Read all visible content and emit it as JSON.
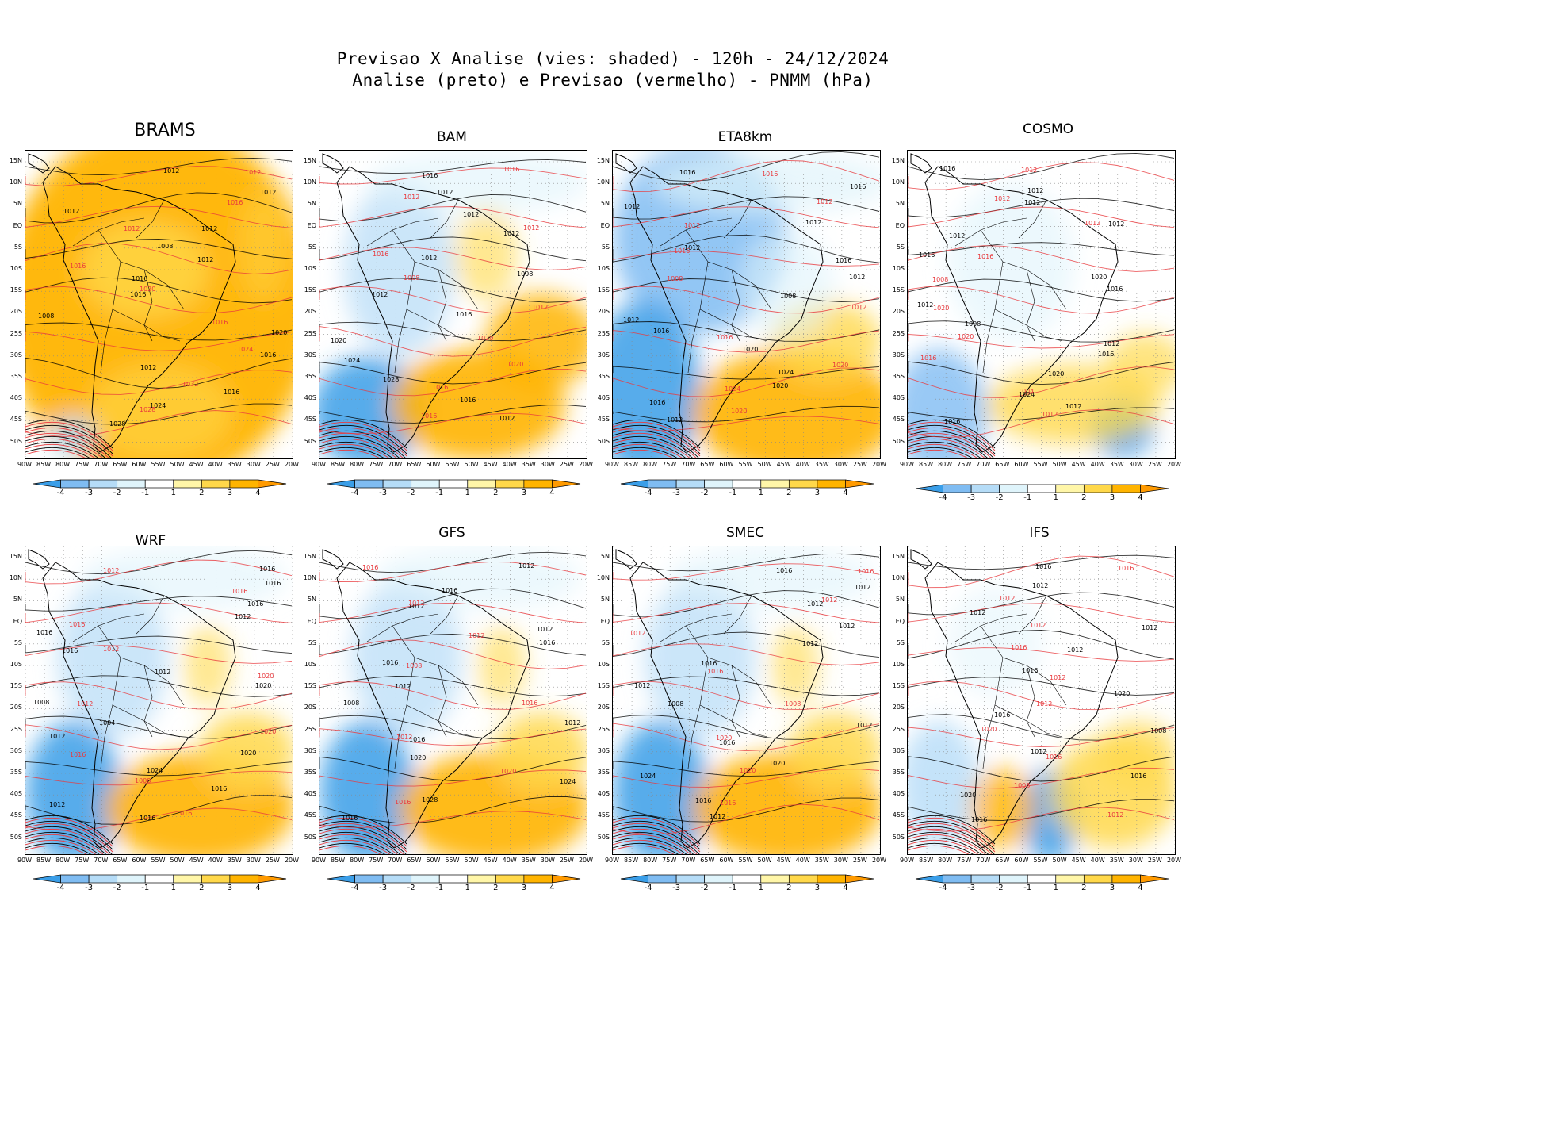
{
  "figure": {
    "title_line1": "Previsao X Analise (vies: shaded) - 120h - 24/12/2024",
    "title_line2": "Analise (preto) e Previsao (vermelho) - PNMM (hPa)"
  },
  "lat_labels": [
    "15N",
    "10N",
    "5N",
    "EQ",
    "5S",
    "10S",
    "15S",
    "20S",
    "25S",
    "30S",
    "35S",
    "40S",
    "45S",
    "50S"
  ],
  "lon_labels": [
    "90W",
    "85W",
    "80W",
    "75W",
    "70W",
    "65W",
    "60W",
    "55W",
    "50W",
    "45W",
    "40W",
    "35W",
    "30W",
    "25W",
    "20W"
  ],
  "colorbar": {
    "labels": [
      "-4",
      "-3",
      "-2",
      "-1",
      "1",
      "2",
      "3",
      "4"
    ],
    "colors": [
      "#3a9ee8",
      "#7fbcf2",
      "#b5dcf7",
      "#dff4fb",
      "#ffffff",
      "#fff6a8",
      "#ffd84a",
      "#ffb400",
      "#ff9a00"
    ]
  },
  "colors": {
    "analysis_contour": "#000000",
    "forecast_contour": "#e8393d",
    "land_outline": "#000000"
  },
  "panels": [
    {
      "name": "BRAMS",
      "bias": "warm-full",
      "labels_black": [
        "1012",
        "1012",
        "1012",
        "1012",
        "1008",
        "1012",
        "1016",
        "1016",
        "1008",
        "1020",
        "1016",
        "1012",
        "1016",
        "1024",
        "1028"
      ],
      "labels_red": [
        "1012",
        "1016",
        "1012",
        "1016",
        "1020",
        "1016",
        "1024",
        "1032",
        "1028"
      ]
    },
    {
      "name": "BAM",
      "bias": "mixed",
      "labels_black": [
        "1016",
        "1012",
        "1012",
        "1012",
        "1012",
        "1008",
        "1012",
        "1016",
        "1020",
        "1024",
        "1028",
        "1016",
        "1012"
      ],
      "labels_red": [
        "1016",
        "1012",
        "1012",
        "1016",
        "1008",
        "1012",
        "1020",
        "1020",
        "1016",
        "1016"
      ]
    },
    {
      "name": "ETA8km",
      "bias": "cold",
      "labels_black": [
        "1016",
        "1016",
        "1012",
        "1012",
        "1012",
        "1016",
        "1012",
        "1008",
        "1012",
        "1016",
        "1020",
        "1024",
        "1020",
        "1016",
        "1012"
      ],
      "labels_red": [
        "1016",
        "1012",
        "1012",
        "1016",
        "1008",
        "1012",
        "1016",
        "1020",
        "1024",
        "1020"
      ]
    },
    {
      "name": "COSMO",
      "bias": "mixed-cold-south",
      "labels_black": [
        "1016",
        "1012",
        "1012",
        "1012",
        "1012",
        "1016",
        "1020",
        "1016",
        "1012",
        "1008",
        "1012",
        "1016",
        "1020",
        "1024",
        "1012",
        "1016"
      ],
      "labels_red": [
        "1012",
        "1012",
        "1012",
        "1016",
        "1008",
        "1020",
        "1020",
        "1016",
        "1004",
        "1012"
      ]
    },
    {
      "name": "WRF",
      "bias": "warm-south",
      "labels_black": [
        "1016",
        "1016",
        "1016",
        "1012",
        "1016",
        "1016",
        "1012",
        "1020",
        "1008",
        "1004",
        "1012",
        "1020",
        "1024",
        "1016",
        "1012",
        "1016"
      ],
      "labels_red": [
        "1012",
        "1016",
        "1016",
        "1012",
        "1020",
        "1012",
        "1020",
        "1016",
        "1008",
        "1016"
      ]
    },
    {
      "name": "GFS",
      "bias": "warm-south",
      "labels_black": [
        "1012",
        "1016",
        "1012",
        "1012",
        "1016",
        "1016",
        "1012",
        "1008",
        "1012",
        "1016",
        "1020",
        "1024",
        "1028",
        "1016"
      ],
      "labels_red": [
        "1016",
        "1012",
        "1012",
        "1008",
        "1016",
        "1012",
        "1020",
        "1016"
      ]
    },
    {
      "name": "SMEC",
      "bias": "warm-south",
      "labels_black": [
        "1016",
        "1012",
        "1012",
        "1012",
        "1012",
        "1016",
        "1012",
        "1008",
        "1012",
        "1016",
        "1020",
        "1024",
        "1016",
        "1012"
      ],
      "labels_red": [
        "1016",
        "1012",
        "1012",
        "1016",
        "1008",
        "1020",
        "1020",
        "1016"
      ]
    },
    {
      "name": "IFS",
      "bias": "mixed-cold-center",
      "labels_black": [
        "1016",
        "1012",
        "1012",
        "1012",
        "1012",
        "1016",
        "1020",
        "1016",
        "1008",
        "1012",
        "1016",
        "1020",
        "1016"
      ],
      "labels_red": [
        "1016",
        "1012",
        "1012",
        "1016",
        "1012",
        "1012",
        "1020",
        "1016",
        "1008",
        "1012"
      ]
    }
  ]
}
